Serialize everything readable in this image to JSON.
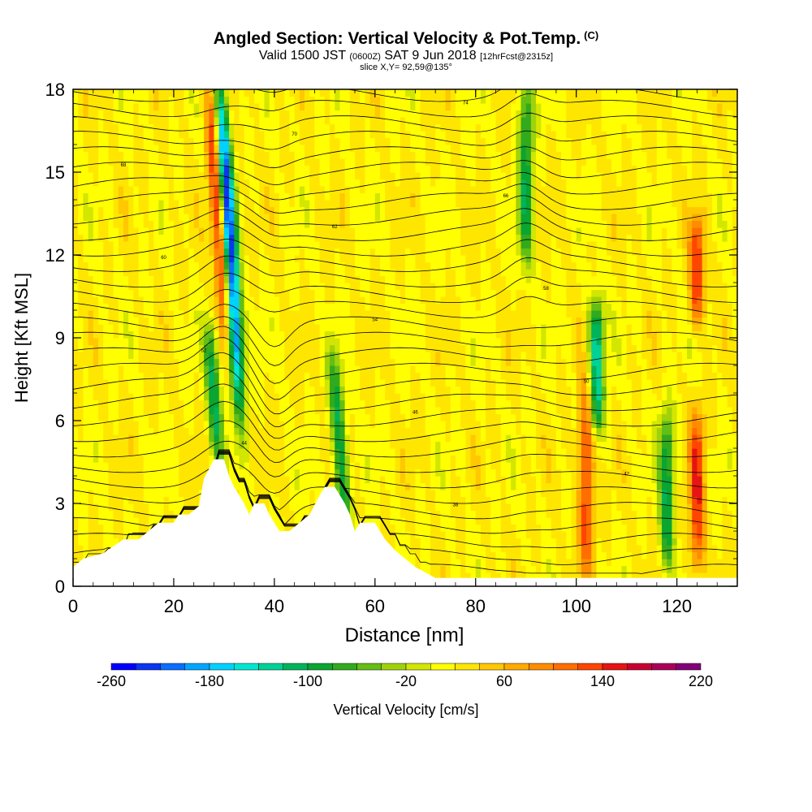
{
  "header": {
    "title": "Angled Section: Vertical Velocity & Pot.Temp.",
    "title_tag": "(C)",
    "valid_main": "Valid 1500 JST",
    "valid_utc": "(0600Z)",
    "valid_date": "SAT 9 Jun 2018",
    "valid_fcst": "[12hrFcst@2315z]",
    "slice": "slice X,Y= 92,59@135°"
  },
  "chart_data": {
    "type": "heatmap",
    "xlabel": "Distance [nm]",
    "ylabel": "Height [Kft MSL]",
    "xlim": [
      0,
      132
    ],
    "ylim": [
      0,
      18
    ],
    "x_ticks": [
      "0",
      "20",
      "40",
      "60",
      "80",
      "100",
      "120"
    ],
    "y_ticks": [
      "0",
      "3",
      "6",
      "9",
      "12",
      "15",
      "18"
    ],
    "colorbar": {
      "label": "Vertical Velocity [cm/s]",
      "ticks": [
        "-260",
        "-180",
        "-100",
        "-20",
        "60",
        "140",
        "220"
      ],
      "min": -260,
      "max": 220,
      "step": 20,
      "colors": [
        "#0000ff",
        "#0a36f0",
        "#0a6eff",
        "#00a5ff",
        "#00d2ff",
        "#00e6d2",
        "#00d296",
        "#00b45a",
        "#0aa532",
        "#32aa1e",
        "#64be14",
        "#a0d20a",
        "#d2e600",
        "#ffff00",
        "#ffe600",
        "#ffc800",
        "#ffaa00",
        "#ff8c00",
        "#ff6e00",
        "#ff4600",
        "#e61414",
        "#c80032",
        "#aa005a",
        "#820078"
      ]
    },
    "features": [
      {
        "kind": "downdraft",
        "x": 31,
        "y_range": [
          7,
          18
        ],
        "peak": -260
      },
      {
        "kind": "updraft",
        "x": 29,
        "y_range": [
          9,
          18
        ],
        "peak": 180
      },
      {
        "kind": "downdraft",
        "x": 28,
        "y_range": [
          5,
          9
        ],
        "peak": -100
      },
      {
        "kind": "downdraft",
        "x": 53,
        "y_range": [
          2,
          8
        ],
        "peak": -100
      },
      {
        "kind": "downdraft",
        "x": 90,
        "y_range": [
          12,
          18
        ],
        "peak": -100
      },
      {
        "kind": "downdraft",
        "x": 104,
        "y_range": [
          6,
          10
        ],
        "peak": -140
      },
      {
        "kind": "updraft",
        "x": 102,
        "y_range": [
          1,
          7
        ],
        "peak": 140
      },
      {
        "kind": "downdraft",
        "x": 118,
        "y_range": [
          1,
          6
        ],
        "peak": -100
      },
      {
        "kind": "updraft",
        "x": 124,
        "y_range": [
          1,
          6
        ],
        "peak": 140
      },
      {
        "kind": "updraft",
        "x": 124,
        "y_range": [
          10,
          13
        ],
        "peak": 140
      }
    ],
    "terrain": [
      [
        0,
        0.7
      ],
      [
        2,
        1.0
      ],
      [
        6,
        1.2
      ],
      [
        10,
        1.7
      ],
      [
        13,
        1.7
      ],
      [
        15,
        2.0
      ],
      [
        17,
        2.3
      ],
      [
        20,
        2.3
      ],
      [
        21,
        2.6
      ],
      [
        23,
        2.6
      ],
      [
        25,
        2.9
      ],
      [
        26,
        3.9
      ],
      [
        28,
        4.6
      ],
      [
        30,
        4.6
      ],
      [
        31,
        4.0
      ],
      [
        32,
        3.6
      ],
      [
        34,
        3.0
      ],
      [
        35,
        2.6
      ],
      [
        36,
        3.0
      ],
      [
        38,
        3.0
      ],
      [
        39,
        2.6
      ],
      [
        40,
        2.3
      ],
      [
        41,
        2.0
      ],
      [
        43,
        2.0
      ],
      [
        45,
        2.3
      ],
      [
        47,
        2.6
      ],
      [
        49,
        3.3
      ],
      [
        50,
        3.6
      ],
      [
        52,
        3.6
      ],
      [
        53,
        3.3
      ],
      [
        54,
        3.0
      ],
      [
        55,
        2.6
      ],
      [
        56,
        2.0
      ],
      [
        57,
        2.3
      ],
      [
        60,
        2.3
      ],
      [
        61,
        2.0
      ],
      [
        62,
        1.7
      ],
      [
        64,
        1.3
      ],
      [
        66,
        1.0
      ],
      [
        68,
        0.7
      ],
      [
        70,
        0.5
      ],
      [
        72,
        0.3
      ],
      [
        132,
        0.3
      ]
    ],
    "isotherm_labels": [
      "34",
      "36",
      "38",
      "40",
      "42",
      "44",
      "46",
      "48",
      "50",
      "52",
      "54",
      "56",
      "58",
      "60",
      "62",
      "64",
      "66",
      "68",
      "70",
      "72",
      "74"
    ]
  }
}
